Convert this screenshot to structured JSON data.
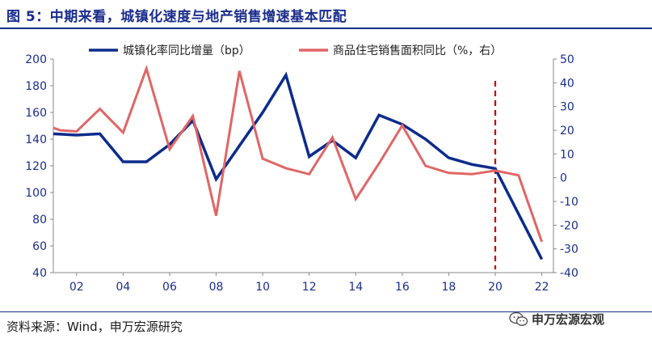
{
  "header": {
    "title": "图 5：中期来看，城镇化速度与地产销售增速基本匹配"
  },
  "footer": {
    "source": "资料来源：Wind，申万宏源研究",
    "watermark": "申万宏源宏观"
  },
  "colors": {
    "title": "#1a2d8c",
    "series_urbanization": "#0d2b8c",
    "series_sales": "#e06666",
    "forecast_line": "#c00000"
  },
  "chart_data": {
    "type": "line",
    "title": "图 5：中期来看，城镇化速度与地产销售增速基本匹配",
    "x": [
      2001,
      2002,
      2003,
      2004,
      2005,
      2006,
      2007,
      2008,
      2009,
      2010,
      2011,
      2012,
      2013,
      2014,
      2015,
      2016,
      2017,
      2018,
      2019,
      2020,
      2021,
      2022
    ],
    "x_tick_labels": [
      "02",
      "04",
      "06",
      "08",
      "10",
      "12",
      "14",
      "16",
      "18",
      "20",
      "22"
    ],
    "x_tick_values": [
      2002,
      2004,
      2006,
      2008,
      2010,
      2012,
      2014,
      2016,
      2018,
      2020,
      2022
    ],
    "xlim": [
      2001,
      2022.5
    ],
    "y_left": {
      "lim": [
        40,
        200
      ],
      "ticks": [
        "40",
        "60",
        "80",
        "100",
        "120",
        "140",
        "160",
        "180",
        "200"
      ],
      "tick_values": [
        40,
        60,
        80,
        100,
        120,
        140,
        160,
        180,
        200
      ]
    },
    "y_right": {
      "lim": [
        -40,
        50
      ],
      "ticks": [
        "-40",
        "-30",
        "-20",
        "-10",
        "0",
        "10",
        "20",
        "30",
        "40",
        "50"
      ],
      "tick_values": [
        -40,
        -30,
        -20,
        -10,
        0,
        10,
        20,
        30,
        40,
        50
      ]
    },
    "series": [
      {
        "name": "城镇化率同比增量（bp）",
        "axis": "left",
        "x": [
          2001,
          2002,
          2003,
          2004,
          2005,
          2006,
          2007,
          2008,
          2009,
          2010,
          2011,
          2012,
          2013,
          2014,
          2015,
          2016,
          2017,
          2018,
          2019,
          2020,
          2021,
          2022
        ],
        "values": [
          144,
          143,
          144,
          123,
          123,
          136,
          154,
          110,
          135,
          160,
          188,
          127,
          139,
          126,
          158,
          151,
          140,
          126,
          121,
          118,
          84,
          50
        ]
      },
      {
        "name": "商品住宅销售面积同比（%，右）",
        "axis": "right",
        "x": [
          2001,
          2001.3,
          2002,
          2003,
          2004,
          2005,
          2006,
          2007,
          2008,
          2009,
          2010,
          2011,
          2012,
          2013,
          2014,
          2015,
          2016,
          2017,
          2018,
          2019,
          2020,
          2021,
          2022
        ],
        "values": [
          21,
          20,
          19.5,
          29,
          19,
          46,
          12,
          26,
          -16,
          45,
          8,
          4,
          1.5,
          17,
          -9,
          6,
          22,
          5,
          2,
          1.5,
          3,
          1,
          -27
        ]
      }
    ],
    "forecast_marker_x": 2020,
    "legend_position": "top-center"
  }
}
